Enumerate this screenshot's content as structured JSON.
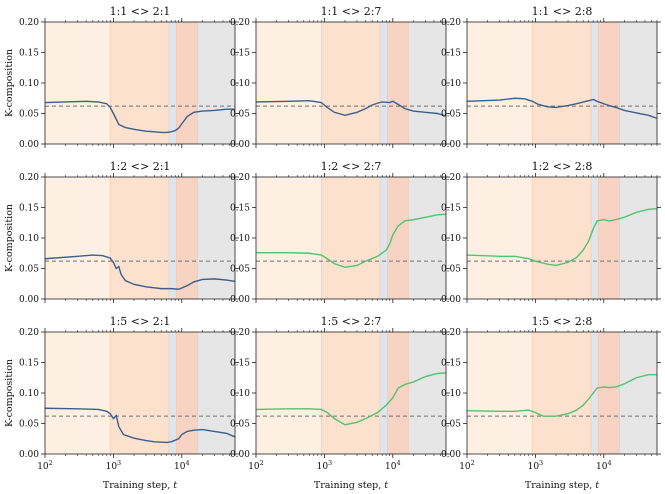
{
  "chart_data": {
    "type": "line",
    "xscale": "log",
    "xlim": [
      100,
      60000
    ],
    "ylim": [
      0.0,
      0.2
    ],
    "xlabel": "Training step, t",
    "ylabel": "K-composition",
    "xticks": [
      {
        "value": 100,
        "base": "10",
        "exp": "2"
      },
      {
        "value": 1000,
        "base": "10",
        "exp": "3"
      },
      {
        "value": 10000,
        "base": "10",
        "exp": "4"
      }
    ],
    "yticks": [
      "0.00",
      "0.05",
      "0.10",
      "0.15",
      "0.20"
    ],
    "baseline": 0.062,
    "shaded_regions": [
      {
        "start": 100,
        "end": 900,
        "color": "#fdf0e3"
      },
      {
        "start": 900,
        "end": 6500,
        "color": "#fce1cf"
      },
      {
        "start": 6500,
        "end": 8300,
        "color": "#dde6ee"
      },
      {
        "start": 8300,
        "end": 17000,
        "color": "#f7d3c3"
      },
      {
        "start": 17000,
        "end": 60000,
        "color": "#e6e6e6"
      }
    ],
    "series_colors": {
      "blue": "#3b5f8a",
      "green": "#52c26f"
    },
    "panels": [
      {
        "title": "1:1 <> 2:1",
        "color": "blue",
        "points": [
          [
            100,
            0.068
          ],
          [
            200,
            0.069
          ],
          [
            400,
            0.07
          ],
          [
            600,
            0.069
          ],
          [
            800,
            0.066
          ],
          [
            900,
            0.06
          ],
          [
            1000,
            0.05
          ],
          [
            1200,
            0.032
          ],
          [
            1500,
            0.027
          ],
          [
            2000,
            0.024
          ],
          [
            3000,
            0.021
          ],
          [
            4000,
            0.02
          ],
          [
            5000,
            0.019
          ],
          [
            6000,
            0.019
          ],
          [
            7000,
            0.02
          ],
          [
            8000,
            0.022
          ],
          [
            9000,
            0.026
          ],
          [
            10000,
            0.033
          ],
          [
            12000,
            0.045
          ],
          [
            15000,
            0.052
          ],
          [
            20000,
            0.054
          ],
          [
            30000,
            0.055
          ],
          [
            45000,
            0.057
          ],
          [
            60000,
            0.057
          ]
        ]
      },
      {
        "title": "1:1 <> 2:7",
        "color": "blue",
        "points": [
          [
            100,
            0.069
          ],
          [
            300,
            0.07
          ],
          [
            600,
            0.071
          ],
          [
            900,
            0.068
          ],
          [
            1100,
            0.06
          ],
          [
            1400,
            0.052
          ],
          [
            2000,
            0.047
          ],
          [
            3000,
            0.052
          ],
          [
            4000,
            0.058
          ],
          [
            5000,
            0.064
          ],
          [
            6000,
            0.067
          ],
          [
            7000,
            0.069
          ],
          [
            9000,
            0.068
          ],
          [
            10000,
            0.07
          ],
          [
            12000,
            0.065
          ],
          [
            15000,
            0.058
          ],
          [
            20000,
            0.054
          ],
          [
            30000,
            0.052
          ],
          [
            45000,
            0.05
          ],
          [
            60000,
            0.046
          ]
        ]
      },
      {
        "title": "1:1 <> 2:8",
        "color": "blue",
        "points": [
          [
            100,
            0.07
          ],
          [
            300,
            0.072
          ],
          [
            500,
            0.075
          ],
          [
            700,
            0.074
          ],
          [
            900,
            0.07
          ],
          [
            1100,
            0.065
          ],
          [
            1500,
            0.061
          ],
          [
            2000,
            0.06
          ],
          [
            3000,
            0.063
          ],
          [
            4000,
            0.066
          ],
          [
            6000,
            0.071
          ],
          [
            7000,
            0.073
          ],
          [
            8000,
            0.07
          ],
          [
            10000,
            0.066
          ],
          [
            12000,
            0.063
          ],
          [
            15000,
            0.06
          ],
          [
            20000,
            0.055
          ],
          [
            30000,
            0.051
          ],
          [
            45000,
            0.047
          ],
          [
            60000,
            0.042
          ]
        ]
      },
      {
        "title": "1:2 <> 2:1",
        "color": "blue",
        "points": [
          [
            100,
            0.066
          ],
          [
            300,
            0.07
          ],
          [
            500,
            0.072
          ],
          [
            700,
            0.071
          ],
          [
            900,
            0.067
          ],
          [
            1000,
            0.06
          ],
          [
            1100,
            0.05
          ],
          [
            1200,
            0.053
          ],
          [
            1300,
            0.04
          ],
          [
            1500,
            0.03
          ],
          [
            2000,
            0.024
          ],
          [
            3000,
            0.02
          ],
          [
            5000,
            0.017
          ],
          [
            7000,
            0.017
          ],
          [
            9000,
            0.016
          ],
          [
            10000,
            0.018
          ],
          [
            12000,
            0.022
          ],
          [
            15000,
            0.028
          ],
          [
            20000,
            0.032
          ],
          [
            30000,
            0.033
          ],
          [
            45000,
            0.031
          ],
          [
            60000,
            0.029
          ]
        ]
      },
      {
        "title": "1:2 <> 2:7",
        "color": "green",
        "points": [
          [
            100,
            0.076
          ],
          [
            300,
            0.076
          ],
          [
            600,
            0.075
          ],
          [
            900,
            0.072
          ],
          [
            1100,
            0.066
          ],
          [
            1400,
            0.058
          ],
          [
            2000,
            0.052
          ],
          [
            3000,
            0.055
          ],
          [
            4000,
            0.062
          ],
          [
            6000,
            0.07
          ],
          [
            8000,
            0.08
          ],
          [
            9000,
            0.09
          ],
          [
            10000,
            0.105
          ],
          [
            12000,
            0.12
          ],
          [
            15000,
            0.128
          ],
          [
            20000,
            0.13
          ],
          [
            30000,
            0.134
          ],
          [
            45000,
            0.138
          ],
          [
            60000,
            0.139
          ]
        ]
      },
      {
        "title": "1:2 <> 2:8",
        "color": "green",
        "points": [
          [
            100,
            0.072
          ],
          [
            300,
            0.07
          ],
          [
            500,
            0.07
          ],
          [
            800,
            0.066
          ],
          [
            1000,
            0.062
          ],
          [
            1500,
            0.057
          ],
          [
            2000,
            0.055
          ],
          [
            3000,
            0.06
          ],
          [
            4000,
            0.068
          ],
          [
            5000,
            0.08
          ],
          [
            6000,
            0.095
          ],
          [
            7000,
            0.115
          ],
          [
            8000,
            0.128
          ],
          [
            10000,
            0.13
          ],
          [
            12000,
            0.128
          ],
          [
            15000,
            0.13
          ],
          [
            20000,
            0.134
          ],
          [
            30000,
            0.142
          ],
          [
            45000,
            0.147
          ],
          [
            60000,
            0.148
          ]
        ]
      },
      {
        "title": "1:5 <> 2:1",
        "color": "blue",
        "points": [
          [
            100,
            0.075
          ],
          [
            300,
            0.074
          ],
          [
            600,
            0.073
          ],
          [
            800,
            0.07
          ],
          [
            900,
            0.066
          ],
          [
            1000,
            0.058
          ],
          [
            1100,
            0.063
          ],
          [
            1200,
            0.045
          ],
          [
            1400,
            0.032
          ],
          [
            2000,
            0.026
          ],
          [
            3000,
            0.022
          ],
          [
            4000,
            0.02
          ],
          [
            6000,
            0.019
          ],
          [
            7000,
            0.02
          ],
          [
            9000,
            0.025
          ],
          [
            10000,
            0.032
          ],
          [
            12000,
            0.037
          ],
          [
            15000,
            0.039
          ],
          [
            20000,
            0.04
          ],
          [
            30000,
            0.037
          ],
          [
            45000,
            0.034
          ],
          [
            60000,
            0.028
          ]
        ]
      },
      {
        "title": "1:5 <> 2:7",
        "color": "green",
        "points": [
          [
            100,
            0.073
          ],
          [
            300,
            0.074
          ],
          [
            600,
            0.074
          ],
          [
            900,
            0.073
          ],
          [
            1100,
            0.068
          ],
          [
            1400,
            0.058
          ],
          [
            2000,
            0.048
          ],
          [
            3000,
            0.052
          ],
          [
            4000,
            0.058
          ],
          [
            6000,
            0.068
          ],
          [
            8000,
            0.08
          ],
          [
            10000,
            0.092
          ],
          [
            12000,
            0.108
          ],
          [
            15000,
            0.114
          ],
          [
            20000,
            0.118
          ],
          [
            30000,
            0.127
          ],
          [
            45000,
            0.132
          ],
          [
            60000,
            0.133
          ]
        ]
      },
      {
        "title": "1:5 <> 2:8",
        "color": "green",
        "points": [
          [
            100,
            0.071
          ],
          [
            300,
            0.07
          ],
          [
            500,
            0.07
          ],
          [
            800,
            0.072
          ],
          [
            1000,
            0.068
          ],
          [
            1300,
            0.062
          ],
          [
            2000,
            0.062
          ],
          [
            3000,
            0.066
          ],
          [
            4000,
            0.072
          ],
          [
            5000,
            0.08
          ],
          [
            6000,
            0.09
          ],
          [
            7000,
            0.1
          ],
          [
            8000,
            0.108
          ],
          [
            10000,
            0.11
          ],
          [
            12000,
            0.109
          ],
          [
            15000,
            0.11
          ],
          [
            20000,
            0.115
          ],
          [
            30000,
            0.125
          ],
          [
            45000,
            0.13
          ],
          [
            60000,
            0.13
          ]
        ]
      }
    ]
  }
}
